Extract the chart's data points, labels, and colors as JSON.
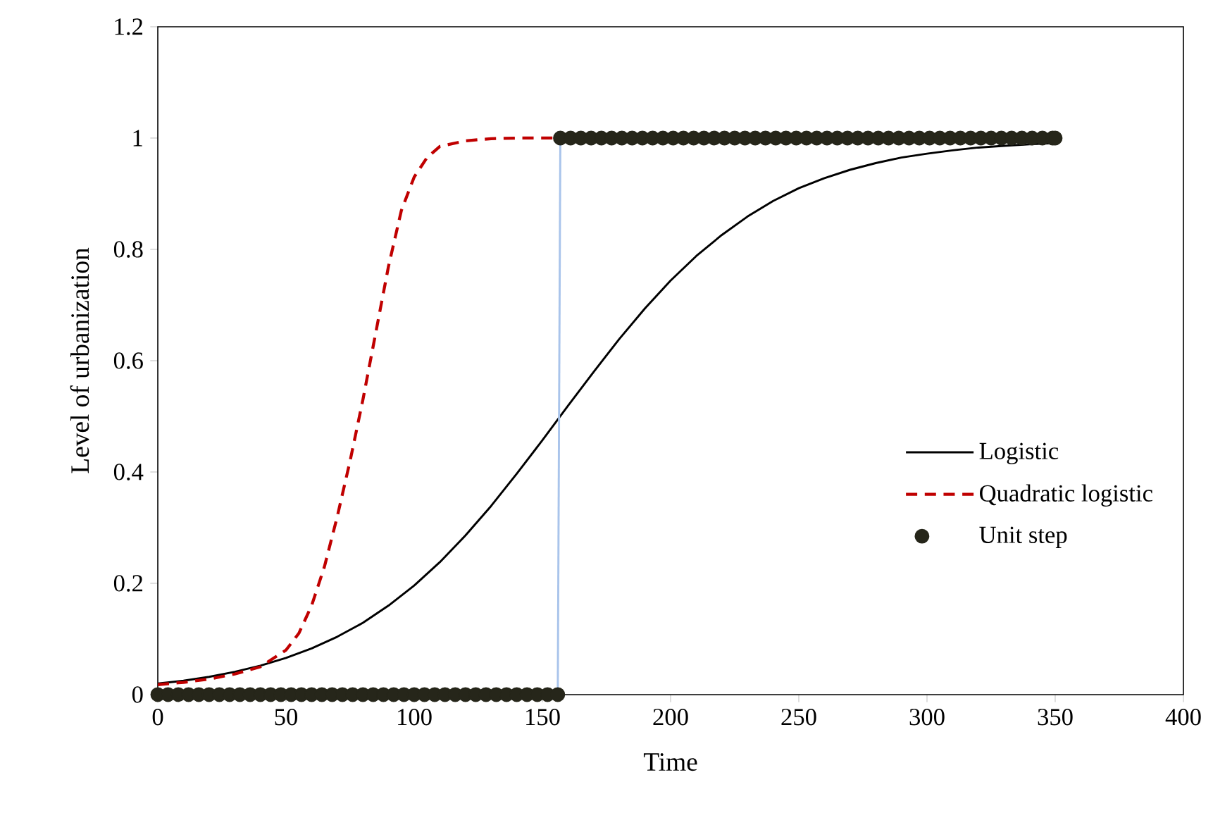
{
  "chart_data": {
    "type": "line",
    "xlabel": "Time",
    "ylabel": "Level of urbanization",
    "xlim": [
      0,
      400
    ],
    "ylim": [
      0,
      1.2
    ],
    "xticks": [
      0,
      50,
      100,
      150,
      200,
      250,
      300,
      350,
      400
    ],
    "yticks": [
      0,
      0.2,
      0.4,
      0.6,
      0.8,
      1,
      1.2
    ],
    "grid": false,
    "legend": "right",
    "series": [
      {
        "name": "Logistic",
        "color": "#000000",
        "line_style": "solid",
        "marker": "none",
        "x": [
          0,
          10,
          20,
          30,
          40,
          50,
          60,
          70,
          80,
          90,
          100,
          110,
          120,
          130,
          140,
          150,
          160,
          170,
          180,
          190,
          200,
          210,
          220,
          230,
          240,
          250,
          260,
          270,
          280,
          290,
          300,
          310,
          320,
          330,
          340,
          350
        ],
        "values": [
          0.02,
          0.025,
          0.032,
          0.041,
          0.052,
          0.066,
          0.083,
          0.104,
          0.129,
          0.16,
          0.196,
          0.238,
          0.286,
          0.339,
          0.397,
          0.457,
          0.519,
          0.58,
          0.639,
          0.694,
          0.744,
          0.788,
          0.826,
          0.859,
          0.887,
          0.91,
          0.928,
          0.943,
          0.955,
          0.965,
          0.972,
          0.978,
          0.983,
          0.986,
          0.989,
          0.991
        ]
      },
      {
        "name": "Quadratic logistic",
        "color": "#c00000",
        "line_style": "dashed",
        "marker": "none",
        "x": [
          0,
          10,
          20,
          30,
          40,
          50,
          55,
          60,
          65,
          70,
          75,
          80,
          85,
          90,
          95,
          100,
          105,
          110,
          120,
          130,
          140,
          157
        ],
        "values": [
          0.018,
          0.022,
          0.028,
          0.037,
          0.05,
          0.08,
          0.11,
          0.16,
          0.23,
          0.32,
          0.42,
          0.53,
          0.65,
          0.77,
          0.87,
          0.93,
          0.965,
          0.985,
          0.995,
          0.999,
          1,
          1
        ]
      },
      {
        "name": "Unit step",
        "type": "scatter",
        "color": "#26261a",
        "marker": "circle",
        "x": [
          0,
          4,
          8,
          12,
          16,
          20,
          24,
          28,
          32,
          36,
          40,
          44,
          48,
          52,
          56,
          60,
          64,
          68,
          72,
          76,
          80,
          84,
          88,
          92,
          96,
          100,
          104,
          108,
          112,
          116,
          120,
          124,
          128,
          132,
          136,
          140,
          144,
          148,
          152,
          156,
          157,
          161,
          165,
          169,
          173,
          177,
          181,
          185,
          189,
          193,
          197,
          201,
          205,
          209,
          213,
          217,
          221,
          225,
          229,
          233,
          237,
          241,
          245,
          249,
          253,
          257,
          261,
          265,
          269,
          273,
          277,
          281,
          285,
          289,
          293,
          297,
          301,
          305,
          309,
          313,
          317,
          321,
          325,
          329,
          333,
          337,
          341,
          345,
          349,
          350
        ],
        "values": [
          0,
          0,
          0,
          0,
          0,
          0,
          0,
          0,
          0,
          0,
          0,
          0,
          0,
          0,
          0,
          0,
          0,
          0,
          0,
          0,
          0,
          0,
          0,
          0,
          0,
          0,
          0,
          0,
          0,
          0,
          0,
          0,
          0,
          0,
          0,
          0,
          0,
          0,
          0,
          0,
          1,
          1,
          1,
          1,
          1,
          1,
          1,
          1,
          1,
          1,
          1,
          1,
          1,
          1,
          1,
          1,
          1,
          1,
          1,
          1,
          1,
          1,
          1,
          1,
          1,
          1,
          1,
          1,
          1,
          1,
          1,
          1,
          1,
          1,
          1,
          1,
          1,
          1,
          1,
          1,
          1,
          1,
          1,
          1,
          1,
          1,
          1,
          1,
          1,
          1
        ]
      },
      {
        "type": "line",
        "color": "#a9c4eb",
        "line_style": "solid",
        "marker": "none",
        "x": [
          156,
          157
        ],
        "values": [
          0,
          1
        ]
      }
    ]
  }
}
